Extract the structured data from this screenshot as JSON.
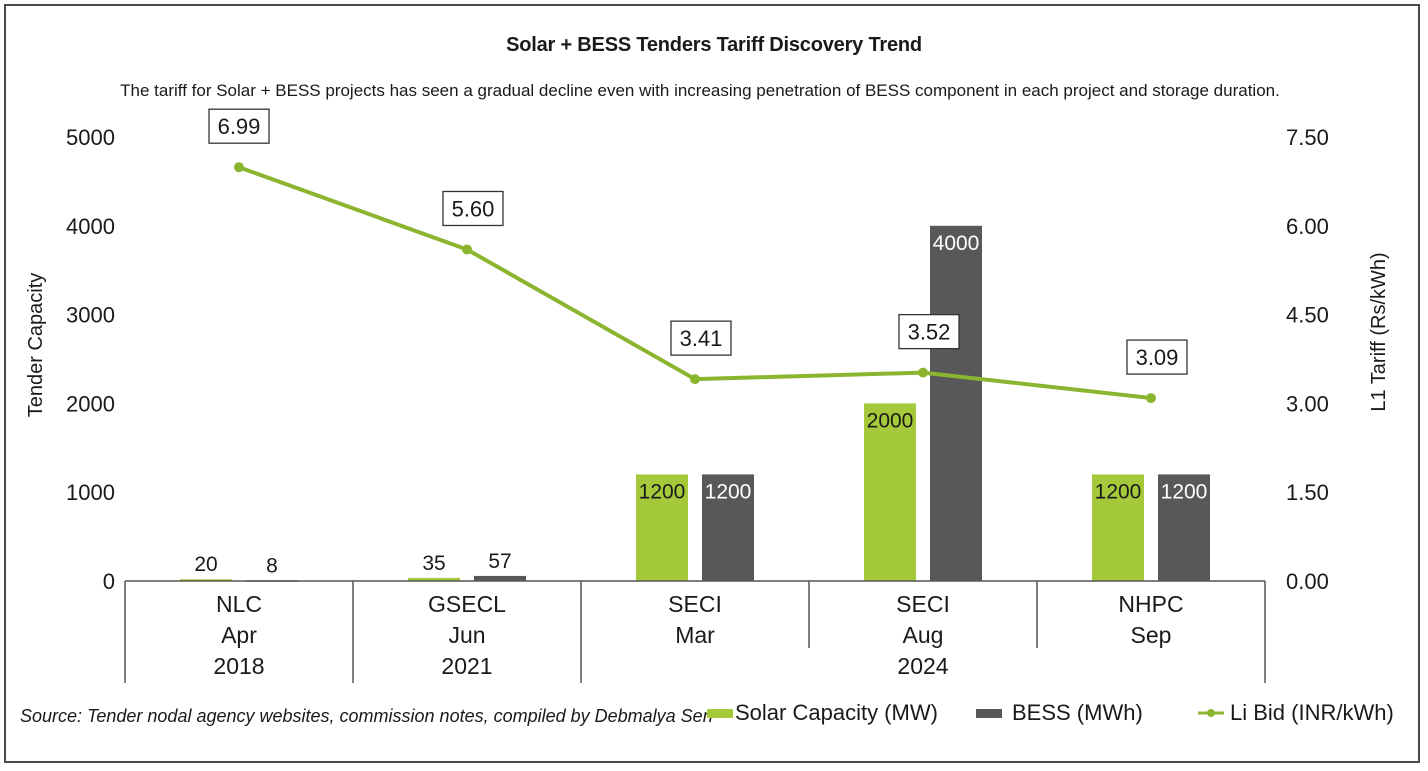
{
  "chart_data": {
    "type": "bar",
    "title": "Solar + BESS Tenders Tariff Discovery Trend",
    "subtitle": "The tariff for Solar + BESS projects has seen a gradual decline even with increasing penetration of BESS component in each project and storage duration.",
    "categories": [
      {
        "agency": "NLC",
        "month": "Apr",
        "year": "2018"
      },
      {
        "agency": "GSECL",
        "month": "Jun",
        "year": "2021"
      },
      {
        "agency": "SECI",
        "month": "Mar",
        "year": "2024"
      },
      {
        "agency": "SECI",
        "month": "Aug",
        "year": "2024"
      },
      {
        "agency": "NHPC",
        "month": "Sep",
        "year": "2024"
      }
    ],
    "year_groups": [
      {
        "label": "2018",
        "span": [
          0,
          0
        ]
      },
      {
        "label": "2021",
        "span": [
          1,
          1
        ]
      },
      {
        "label": "2024",
        "span": [
          2,
          4
        ]
      }
    ],
    "series": [
      {
        "name": "Solar Capacity (MW)",
        "type": "bar",
        "axis": "left",
        "color": "#a4c93a",
        "label_color": "#1a1a1a",
        "values": [
          20,
          35,
          1200,
          2000,
          1200
        ]
      },
      {
        "name": "BESS (MWh)",
        "type": "bar",
        "axis": "left",
        "color": "#58585a",
        "label_color": "#ffffff",
        "values": [
          8,
          57,
          1200,
          4000,
          1200
        ]
      },
      {
        "name": "Li Bid (INR/kWh)",
        "type": "line",
        "axis": "right",
        "color": "#8cb52f",
        "values": [
          6.99,
          5.6,
          3.41,
          3.52,
          3.09
        ],
        "labels": [
          "6.99",
          "5.60",
          "3.41",
          "3.52",
          "3.09"
        ]
      }
    ],
    "ylabel": "Tender Capacity",
    "ylim": [
      0,
      5000
    ],
    "yticks": [
      "0",
      "1000",
      "2000",
      "3000",
      "4000",
      "5000"
    ],
    "y2label": "L1 Tariff (Rs/kWh)",
    "y2lim": [
      0,
      7.5
    ],
    "y2ticks": [
      "0.00",
      "1.50",
      "3.00",
      "4.50",
      "6.00",
      "7.50"
    ],
    "grid": false,
    "legend": "bottom-right"
  },
  "source": "Source: Tender nodal agency websites, commission notes, compiled by Debmalya Sen"
}
